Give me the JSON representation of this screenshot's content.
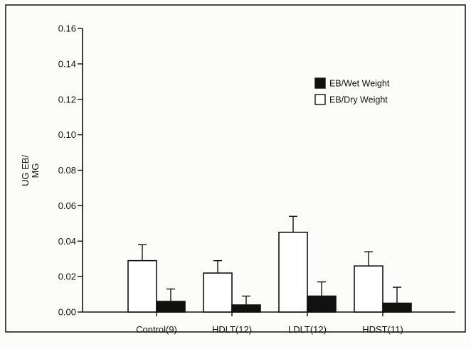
{
  "chart_data": {
    "type": "bar",
    "title": "",
    "xlabel": "",
    "ylabel_lines": [
      "UG EB/",
      "MG"
    ],
    "categories": [
      "Control(9)",
      "HDLT(12)",
      "LDLT(12)",
      "HDST(11)"
    ],
    "series": [
      {
        "name": "EB/Dry Weight",
        "color": "#ffffff",
        "values": [
          0.029,
          0.022,
          0.045,
          0.026
        ],
        "errors": [
          0.009,
          0.007,
          0.009,
          0.008
        ]
      },
      {
        "name": "EB/Wet Weight",
        "color": "#111111",
        "values": [
          0.006,
          0.004,
          0.009,
          0.005
        ],
        "errors": [
          0.007,
          0.005,
          0.008,
          0.009
        ]
      }
    ],
    "legend_order": [
      1,
      0
    ],
    "legend_position": "top-right",
    "ylim": [
      0,
      0.16
    ],
    "yticks": [
      "0.00",
      "0.02",
      "0.04",
      "0.06",
      "0.08",
      "0.10",
      "0.12",
      "0.14",
      "0.16"
    ],
    "grid": false
  }
}
